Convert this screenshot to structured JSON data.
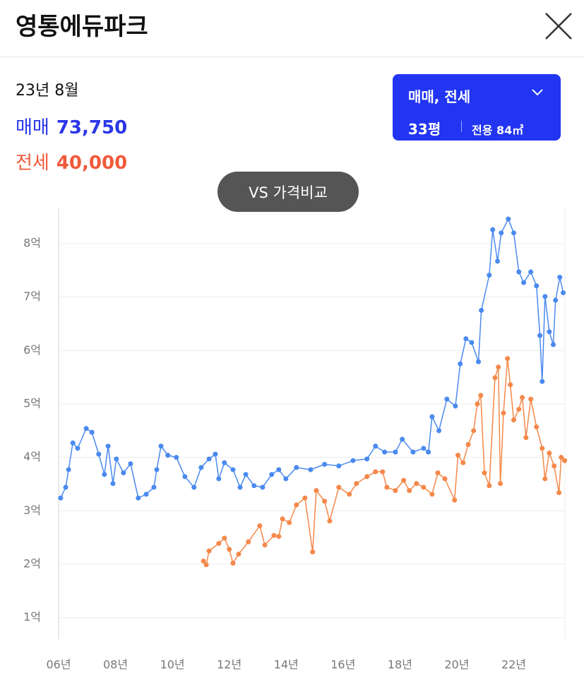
{
  "header": {
    "title": "영통에듀파크"
  },
  "summary": {
    "date": "23년 8월",
    "sale_label": "매매",
    "sale_value": "73,750",
    "jeonse_label": "전세",
    "jeonse_value": "40,000"
  },
  "selector": {
    "trade_type": "매매, 전세",
    "pyeong": "33평",
    "area": "전용 84㎡"
  },
  "compare_button": "VS 가격비교",
  "chart_data": {
    "type": "line",
    "xlim": [
      2006,
      2023.8
    ],
    "ylim": [
      0.6,
      8.66
    ],
    "xticks": [
      {
        "value": 2006,
        "label": "06년"
      },
      {
        "value": 2008,
        "label": "08년"
      },
      {
        "value": 2010,
        "label": "10년"
      },
      {
        "value": 2012,
        "label": "12년"
      },
      {
        "value": 2014,
        "label": "14년"
      },
      {
        "value": 2016,
        "label": "16년"
      },
      {
        "value": 2018,
        "label": "18년"
      },
      {
        "value": 2020,
        "label": "20년"
      },
      {
        "value": 2022,
        "label": "22년"
      }
    ],
    "yticks": [
      {
        "value": 1,
        "label": "1억"
      },
      {
        "value": 2,
        "label": "2억"
      },
      {
        "value": 3,
        "label": "3억"
      },
      {
        "value": 4,
        "label": "4억"
      },
      {
        "value": 5,
        "label": "5억"
      },
      {
        "value": 6,
        "label": "6억"
      },
      {
        "value": 7,
        "label": "7억"
      },
      {
        "value": 8,
        "label": "8억"
      }
    ],
    "grid": true,
    "series": [
      {
        "color": "#4a8af0",
        "x": [
          2006.07,
          2006.25,
          2006.35,
          2006.5,
          2006.67,
          2006.97,
          2007.17,
          2007.41,
          2007.61,
          2007.74,
          2007.91,
          2008.03,
          2008.28,
          2008.53,
          2008.8,
          2009.08,
          2009.35,
          2009.45,
          2009.6,
          2009.84,
          2010.14,
          2010.44,
          2010.76,
          2011.01,
          2011.29,
          2011.51,
          2011.63,
          2011.83,
          2012.13,
          2012.38,
          2012.58,
          2012.87,
          2013.17,
          2013.49,
          2013.74,
          2013.99,
          2014.36,
          2014.86,
          2015.35,
          2015.85,
          2016.35,
          2016.84,
          2017.14,
          2017.46,
          2017.84,
          2018.08,
          2018.46,
          2018.83,
          2019.0,
          2019.13,
          2019.37,
          2019.65,
          2019.95,
          2020.12,
          2020.32,
          2020.52,
          2020.76,
          2020.86,
          2021.14,
          2021.26,
          2021.43,
          2021.56,
          2021.81,
          2022.0,
          2022.18,
          2022.35,
          2022.6,
          2022.8,
          2022.92,
          2023.0,
          2023.1,
          2023.25,
          2023.39,
          2023.47,
          2023.62,
          2023.74
        ],
        "values": [
          3.24,
          3.44,
          3.77,
          4.27,
          4.17,
          4.54,
          4.47,
          4.06,
          3.68,
          4.21,
          3.51,
          3.97,
          3.71,
          3.88,
          3.24,
          3.31,
          3.44,
          3.77,
          4.21,
          4.04,
          4.0,
          3.64,
          3.44,
          3.81,
          3.97,
          4.06,
          3.6,
          3.9,
          3.77,
          3.44,
          3.68,
          3.47,
          3.44,
          3.68,
          3.77,
          3.6,
          3.81,
          3.77,
          3.87,
          3.84,
          3.94,
          3.97,
          4.21,
          4.1,
          4.1,
          4.34,
          4.1,
          4.17,
          4.1,
          4.76,
          4.5,
          5.09,
          4.96,
          5.75,
          6.22,
          6.15,
          5.79,
          6.75,
          7.41,
          8.26,
          7.67,
          8.2,
          8.46,
          8.2,
          7.47,
          7.27,
          7.47,
          7.21,
          6.28,
          5.42,
          7.01,
          6.35,
          6.11,
          6.94,
          7.37,
          7.08
        ]
      },
      {
        "color": "#f5884a",
        "x": [
          2011.09,
          2011.19,
          2011.29,
          2011.63,
          2011.83,
          2012.0,
          2012.13,
          2012.33,
          2012.67,
          2013.07,
          2013.25,
          2013.57,
          2013.74,
          2013.87,
          2014.11,
          2014.36,
          2014.66,
          2014.93,
          2015.06,
          2015.35,
          2015.53,
          2015.85,
          2016.22,
          2016.47,
          2016.84,
          2017.14,
          2017.39,
          2017.54,
          2017.84,
          2018.13,
          2018.33,
          2018.58,
          2018.83,
          2019.13,
          2019.33,
          2019.58,
          2019.92,
          2020.04,
          2020.22,
          2020.4,
          2020.59,
          2020.72,
          2020.84,
          2020.97,
          2021.14,
          2021.34,
          2021.46,
          2021.53,
          2021.64,
          2021.78,
          2021.88,
          2022.0,
          2022.18,
          2022.3,
          2022.43,
          2022.6,
          2022.8,
          2023.0,
          2023.1,
          2023.25,
          2023.42,
          2023.59,
          2023.67,
          2023.79
        ],
        "values": [
          2.06,
          1.99,
          2.25,
          2.39,
          2.49,
          2.28,
          2.02,
          2.19,
          2.42,
          2.72,
          2.36,
          2.54,
          2.52,
          2.85,
          2.78,
          3.11,
          3.24,
          2.23,
          3.38,
          3.18,
          2.81,
          3.44,
          3.31,
          3.51,
          3.64,
          3.73,
          3.73,
          3.44,
          3.38,
          3.57,
          3.38,
          3.51,
          3.44,
          3.31,
          3.71,
          3.6,
          3.2,
          4.04,
          3.9,
          4.24,
          4.5,
          5.0,
          5.16,
          3.71,
          3.47,
          5.49,
          5.69,
          3.51,
          4.83,
          5.85,
          5.36,
          4.7,
          4.9,
          5.12,
          4.37,
          5.09,
          4.57,
          4.17,
          3.6,
          4.08,
          3.84,
          3.34,
          4.0,
          3.94
        ]
      }
    ]
  }
}
